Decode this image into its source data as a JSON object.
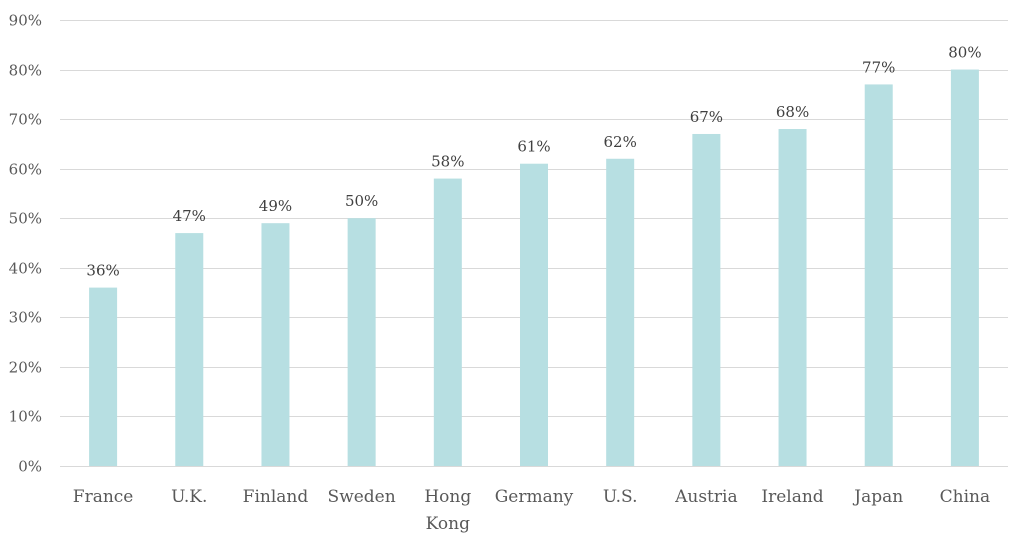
{
  "chart_data": {
    "type": "bar",
    "title": "",
    "xlabel": "",
    "ylabel": "",
    "categories": [
      "France",
      "U.K.",
      "Finland",
      "Sweden",
      "Hong Kong",
      "Germany",
      "U.S.",
      "Austria",
      "Ireland",
      "Japan",
      "China"
    ],
    "values": [
      36,
      47,
      49,
      50,
      58,
      61,
      62,
      67,
      68,
      77,
      80
    ],
    "data_labels": [
      "36%",
      "47%",
      "49%",
      "50%",
      "58%",
      "61%",
      "62%",
      "67%",
      "68%",
      "77%",
      "80%"
    ],
    "ylim": [
      0,
      90
    ],
    "yticks": [
      0,
      10,
      20,
      30,
      40,
      50,
      60,
      70,
      80,
      90
    ],
    "ytick_labels": [
      "0%",
      "10%",
      "20%",
      "30%",
      "40%",
      "50%",
      "60%",
      "70%",
      "80%",
      "90%"
    ],
    "grid": true,
    "legend": "none",
    "bar_color": "#b7dfe2"
  }
}
